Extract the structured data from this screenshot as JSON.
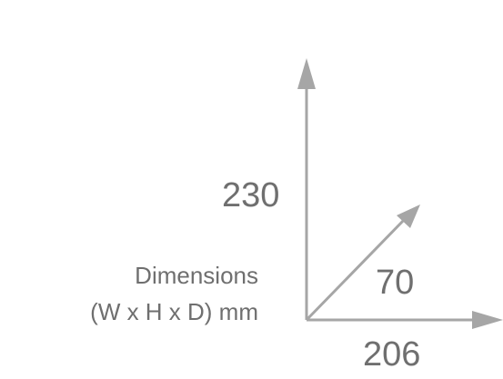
{
  "caption": {
    "line1": "Dimensions",
    "line2": "(W x H x D) mm"
  },
  "dimensions": {
    "width": "206",
    "height": "230",
    "depth": "70"
  },
  "colors": {
    "arrow": "#a6a6a6",
    "text": "#6f6f6f",
    "background": "#ffffff"
  }
}
